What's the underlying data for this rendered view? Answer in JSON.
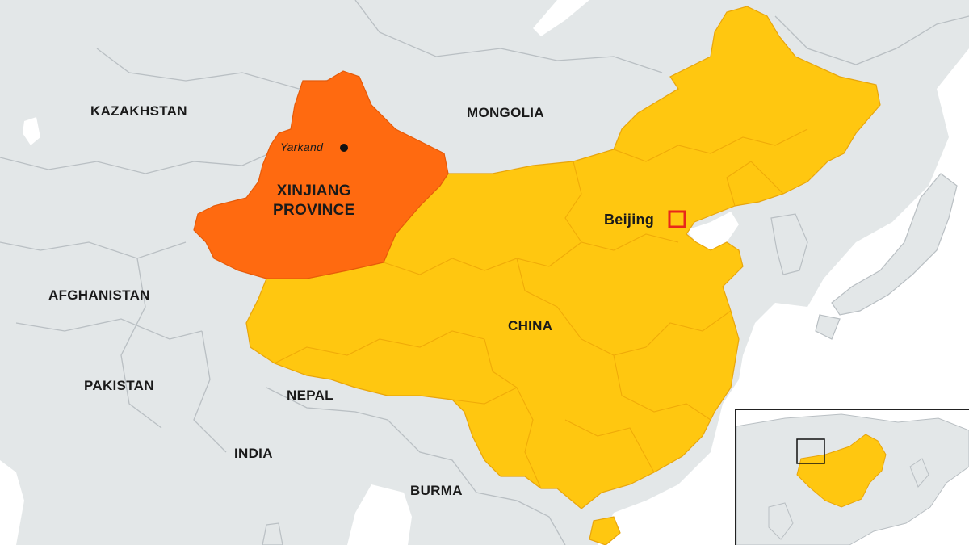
{
  "map": {
    "countries": [
      {
        "key": "kazakhstan",
        "label": "KAZAKHSTAN"
      },
      {
        "key": "mongolia",
        "label": "MONGOLIA"
      },
      {
        "key": "afghanistan",
        "label": "AFGHANISTAN"
      },
      {
        "key": "pakistan",
        "label": "PAKISTAN"
      },
      {
        "key": "nepal",
        "label": "NEPAL"
      },
      {
        "key": "india",
        "label": "INDIA"
      },
      {
        "key": "burma",
        "label": "BURMA"
      },
      {
        "key": "china",
        "label": "CHINA"
      }
    ],
    "region": {
      "line1": "XINJIANG",
      "line2": "PROVINCE"
    },
    "city": {
      "label": "Yarkand",
      "marker": "dot"
    },
    "capital": {
      "label": "Beijing",
      "marker": "square"
    },
    "colors": {
      "land": "#e3e7e8",
      "sea": "#ffffff",
      "borders": "#b9bfc3",
      "china": "#ffc710",
      "china_provinces": "#f0ab08",
      "xinjiang": "#ff6a10",
      "capital_marker": "#e8271a",
      "text": "#1a1a1a"
    },
    "inset": {
      "shows": "Asia locator with China highlighted"
    }
  }
}
